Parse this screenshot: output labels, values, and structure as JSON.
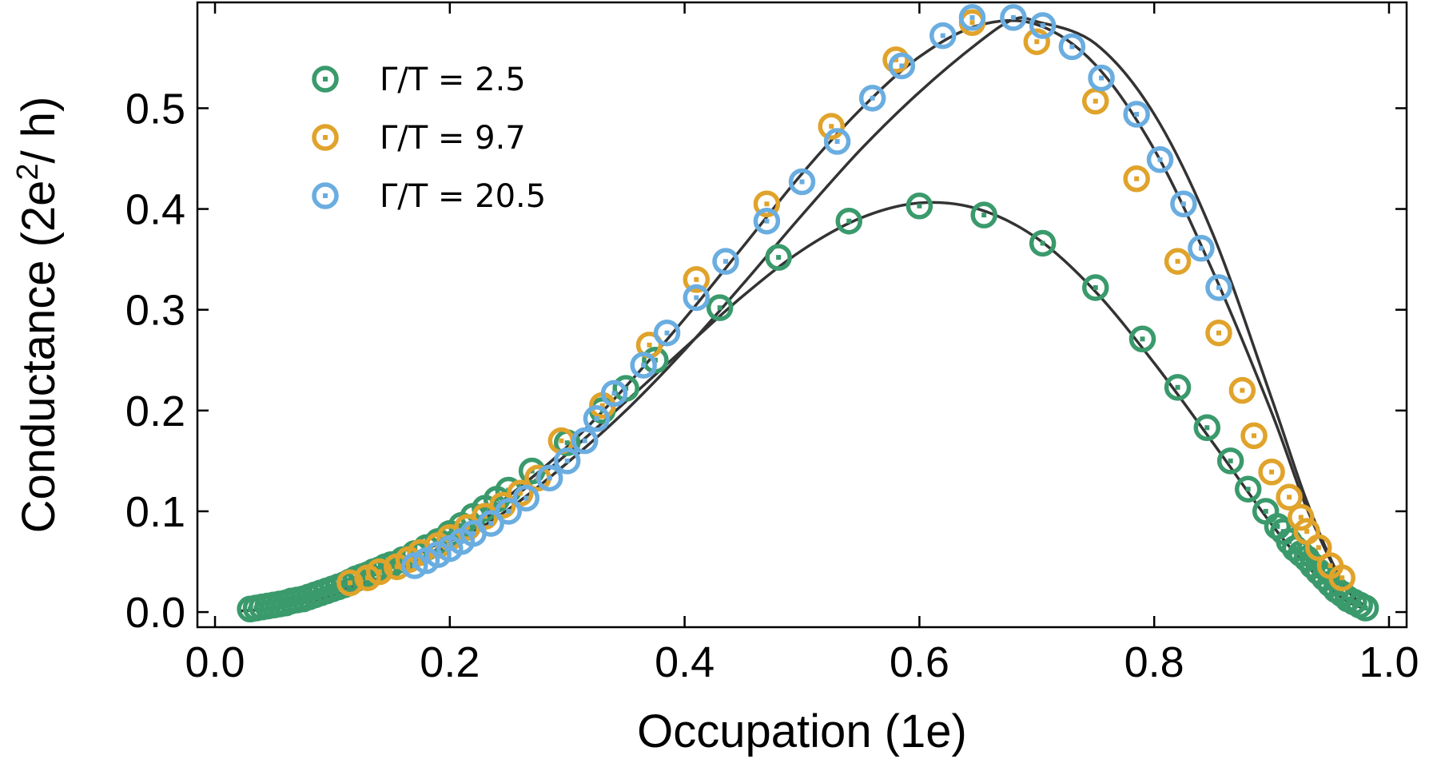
{
  "chart_data": {
    "type": "scatter",
    "xlabel": "Occupation (1e)",
    "ylabel_main": "Conductance (2e",
    "ylabel_sup": "2",
    "ylabel_tail": "/ h)",
    "xlim": [
      -0.015,
      1.015
    ],
    "ylim": [
      -0.015,
      0.605
    ],
    "xticks": [
      0.0,
      0.2,
      0.4,
      0.6,
      0.8,
      1.0
    ],
    "xtick_labels": [
      "0.0",
      "0.2",
      "0.4",
      "0.6",
      "0.8",
      "1.0"
    ],
    "yticks": [
      0.0,
      0.1,
      0.2,
      0.3,
      0.4,
      0.5
    ],
    "ytick_labels": [
      "0.0",
      "0.1",
      "0.2",
      "0.3",
      "0.4",
      "0.5"
    ],
    "legend_position": "top-left",
    "grid": false,
    "series": [
      {
        "name": "Γ/T = 2.5",
        "color": "#3a9a6c",
        "x": [
          0.03,
          0.035,
          0.04,
          0.045,
          0.05,
          0.055,
          0.06,
          0.065,
          0.07,
          0.075,
          0.08,
          0.085,
          0.09,
          0.095,
          0.1,
          0.105,
          0.11,
          0.115,
          0.12,
          0.125,
          0.13,
          0.135,
          0.14,
          0.145,
          0.15,
          0.16,
          0.17,
          0.18,
          0.19,
          0.2,
          0.21,
          0.22,
          0.23,
          0.24,
          0.25,
          0.27,
          0.3,
          0.33,
          0.35,
          0.375,
          0.43,
          0.48,
          0.54,
          0.6,
          0.655,
          0.705,
          0.75,
          0.79,
          0.82,
          0.845,
          0.865,
          0.88,
          0.895,
          0.905,
          0.91,
          0.915,
          0.92,
          0.925,
          0.93,
          0.935,
          0.94,
          0.945,
          0.95,
          0.955,
          0.96,
          0.965,
          0.97,
          0.975,
          0.98
        ],
        "y": [
          0.003,
          0.004,
          0.005,
          0.006,
          0.007,
          0.008,
          0.009,
          0.011,
          0.012,
          0.013,
          0.015,
          0.017,
          0.019,
          0.021,
          0.023,
          0.025,
          0.027,
          0.03,
          0.033,
          0.035,
          0.037,
          0.04,
          0.042,
          0.045,
          0.047,
          0.052,
          0.058,
          0.064,
          0.07,
          0.078,
          0.086,
          0.095,
          0.103,
          0.112,
          0.121,
          0.14,
          0.168,
          0.2,
          0.222,
          0.25,
          0.302,
          0.352,
          0.388,
          0.403,
          0.394,
          0.366,
          0.322,
          0.271,
          0.223,
          0.183,
          0.15,
          0.122,
          0.1,
          0.085,
          0.08,
          0.07,
          0.063,
          0.058,
          0.053,
          0.046,
          0.04,
          0.034,
          0.028,
          0.022,
          0.018,
          0.013,
          0.01,
          0.007,
          0.004
        ]
      },
      {
        "name": "Γ/T = 9.7",
        "color": "#e0a32b",
        "x": [
          0.115,
          0.13,
          0.14,
          0.155,
          0.165,
          0.175,
          0.19,
          0.2,
          0.215,
          0.23,
          0.245,
          0.26,
          0.275,
          0.295,
          0.33,
          0.37,
          0.41,
          0.47,
          0.525,
          0.58,
          0.645,
          0.7,
          0.75,
          0.785,
          0.82,
          0.855,
          0.875,
          0.885,
          0.9,
          0.915,
          0.925,
          0.93,
          0.94,
          0.95,
          0.96
        ],
        "y": [
          0.029,
          0.034,
          0.04,
          0.045,
          0.052,
          0.059,
          0.066,
          0.074,
          0.084,
          0.095,
          0.106,
          0.118,
          0.133,
          0.17,
          0.205,
          0.265,
          0.33,
          0.405,
          0.482,
          0.548,
          0.585,
          0.566,
          0.507,
          0.43,
          0.348,
          0.277,
          0.22,
          0.175,
          0.139,
          0.114,
          0.094,
          0.08,
          0.064,
          0.046,
          0.034
        ]
      },
      {
        "name": "Γ/T = 20.5",
        "color": "#6aade0",
        "x": [
          0.17,
          0.18,
          0.19,
          0.2,
          0.21,
          0.22,
          0.235,
          0.25,
          0.265,
          0.285,
          0.3,
          0.315,
          0.325,
          0.34,
          0.365,
          0.385,
          0.41,
          0.435,
          0.47,
          0.5,
          0.53,
          0.56,
          0.585,
          0.62,
          0.645,
          0.68,
          0.705,
          0.73,
          0.755,
          0.785,
          0.805,
          0.825,
          0.84,
          0.855
        ],
        "y": [
          0.046,
          0.051,
          0.057,
          0.063,
          0.07,
          0.078,
          0.088,
          0.1,
          0.113,
          0.133,
          0.15,
          0.17,
          0.192,
          0.217,
          0.245,
          0.277,
          0.312,
          0.348,
          0.388,
          0.427,
          0.467,
          0.51,
          0.542,
          0.572,
          0.59,
          0.59,
          0.582,
          0.561,
          0.53,
          0.494,
          0.449,
          0.405,
          0.361,
          0.322
        ]
      }
    ],
    "fit_curves": [
      {
        "x": [
          0.02,
          0.05,
          0.1,
          0.15,
          0.2,
          0.25,
          0.3,
          0.35,
          0.4,
          0.45,
          0.5,
          0.55,
          0.6,
          0.65,
          0.7,
          0.75,
          0.8,
          0.85,
          0.9,
          0.93,
          0.96,
          0.98
        ],
        "y": [
          0.001,
          0.004,
          0.016,
          0.038,
          0.07,
          0.11,
          0.157,
          0.209,
          0.262,
          0.314,
          0.359,
          0.391,
          0.406,
          0.4,
          0.371,
          0.318,
          0.247,
          0.168,
          0.087,
          0.046,
          0.014,
          0.003
        ]
      },
      {
        "x": [
          0.06,
          0.1,
          0.15,
          0.2,
          0.25,
          0.3,
          0.35,
          0.4,
          0.45,
          0.5,
          0.55,
          0.6,
          0.65,
          0.7,
          0.75,
          0.8,
          0.85,
          0.9,
          0.93,
          0.96,
          0.98
        ],
        "y": [
          0.01,
          0.022,
          0.044,
          0.075,
          0.115,
          0.164,
          0.224,
          0.291,
          0.363,
          0.435,
          0.499,
          0.551,
          0.582,
          0.583,
          0.543,
          0.459,
          0.338,
          0.198,
          0.103,
          0.03,
          0.005
        ]
      },
      {
        "x": [
          0.1,
          0.15,
          0.2,
          0.25,
          0.3,
          0.35,
          0.4,
          0.45,
          0.5,
          0.55,
          0.6,
          0.65,
          0.68,
          0.7,
          0.75,
          0.8,
          0.85,
          0.9,
          0.93,
          0.96,
          0.98
        ],
        "y": [
          0.02,
          0.038,
          0.066,
          0.102,
          0.148,
          0.2,
          0.26,
          0.326,
          0.394,
          0.459,
          0.516,
          0.565,
          0.588,
          0.586,
          0.564,
          0.494,
          0.375,
          0.212,
          0.11,
          0.03,
          0.005
        ]
      }
    ]
  }
}
